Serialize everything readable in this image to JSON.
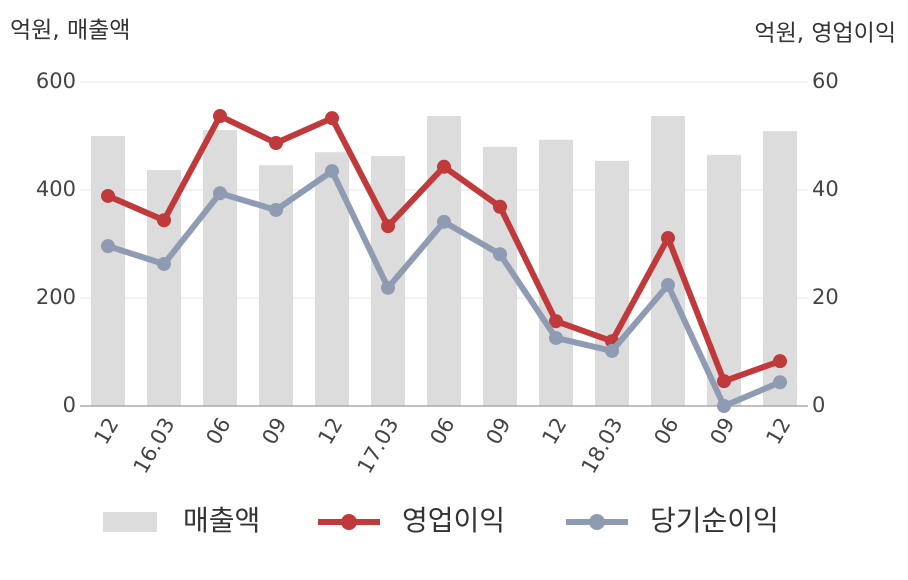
{
  "chart_data": {
    "type": "bar-line",
    "y_label": "억원, 매출액",
    "y2_label": "억원, 영업이익",
    "categories": [
      "12",
      "16.03",
      "06",
      "09",
      "12",
      "17.03",
      "06",
      "09",
      "12",
      "18.03",
      "06",
      "09",
      "12"
    ],
    "ylim": [
      0,
      600
    ],
    "yticks": [
      0,
      200,
      400,
      600
    ],
    "y2lim": [
      0,
      60
    ],
    "y2ticks": [
      0,
      20,
      40,
      60
    ],
    "grid": true,
    "series": [
      {
        "name": "매출액",
        "type": "bar",
        "color": "#dcdcdc",
        "values": [
          500,
          437,
          511,
          446,
          470,
          463,
          537,
          480,
          493,
          454,
          537,
          465,
          509
        ]
      },
      {
        "name": "영업이익",
        "type": "line",
        "axis": "y2",
        "color": "#c0393b",
        "values": [
          38.9,
          34.4,
          53.7,
          48.7,
          53.3,
          33.3,
          44.3,
          36.9,
          15.7,
          12.0,
          31.1,
          4.6,
          8.3
        ]
      },
      {
        "name": "당기순이익",
        "type": "line",
        "axis": "y2",
        "color": "#8f9bb3",
        "values": [
          29.6,
          26.3,
          39.4,
          36.3,
          43.5,
          21.9,
          34.1,
          28.1,
          12.6,
          10.2,
          22.4,
          0,
          4.4
        ]
      }
    ]
  }
}
